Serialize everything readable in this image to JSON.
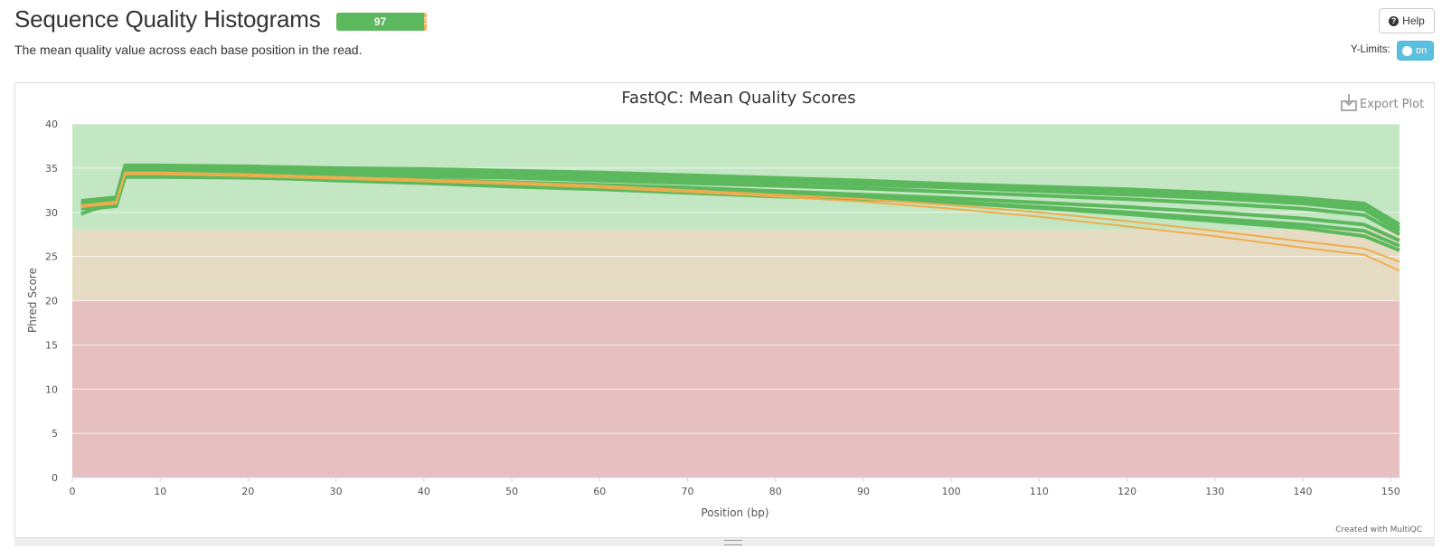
{
  "header": {
    "title": "Sequence Quality Histograms",
    "status_pass": "97",
    "status_warn": "3",
    "description": "The mean quality value across each base position in the read.",
    "help_label": "Help",
    "help_icon": "question-circle-icon",
    "ylimits_label": "Y-Limits:",
    "ylimits_toggle": "on"
  },
  "plot": {
    "export_label": "Export Plot",
    "export_icon": "download-icon",
    "credit": "Created with MultiQC"
  },
  "colors": {
    "pass_line": "#5cb85c",
    "warn_line": "#f0ad4e",
    "band_good": "#c3e6c3",
    "band_warn": "#e6dcc3",
    "band_fail": "#e6c0c0",
    "toggle": "#5bc0de"
  },
  "chart_data": {
    "type": "line",
    "title": "FastQC: Mean Quality Scores",
    "xlabel": "Position (bp)",
    "ylabel": "Phred Score",
    "xlim": [
      0,
      151
    ],
    "ylim": [
      0,
      40
    ],
    "xticks": [
      0,
      10,
      20,
      30,
      40,
      50,
      60,
      70,
      80,
      90,
      100,
      110,
      120,
      130,
      140,
      150
    ],
    "yticks": [
      0,
      5,
      10,
      15,
      20,
      25,
      30,
      35,
      40
    ],
    "bands": [
      {
        "from": 0,
        "to": 20,
        "color": "#e6c0c0"
      },
      {
        "from": 20,
        "to": 28,
        "color": "#e6dcc3"
      },
      {
        "from": 28,
        "to": 40,
        "color": "#c3e6c3"
      }
    ],
    "x": [
      1,
      2,
      3,
      4,
      5,
      6,
      7,
      8,
      9,
      10,
      20,
      30,
      40,
      50,
      60,
      70,
      80,
      90,
      100,
      110,
      120,
      130,
      140,
      147,
      151
    ],
    "series": [
      {
        "status": "pass",
        "values": [
          31.3,
          31.4,
          31.5,
          31.6,
          31.7,
          35.3,
          35.3,
          35.3,
          35.3,
          35.3,
          35.2,
          35.0,
          34.9,
          34.7,
          34.5,
          34.2,
          33.9,
          33.6,
          33.2,
          32.9,
          32.6,
          32.2,
          31.6,
          31.0,
          28.6
        ]
      },
      {
        "status": "pass",
        "values": [
          31.0,
          31.1,
          31.2,
          31.3,
          31.4,
          35.0,
          35.0,
          35.0,
          35.0,
          35.0,
          34.9,
          34.8,
          34.6,
          34.4,
          34.2,
          33.9,
          33.6,
          33.3,
          33.0,
          32.7,
          32.3,
          31.9,
          31.3,
          30.6,
          28.2
        ]
      },
      {
        "status": "pass",
        "values": [
          30.8,
          30.9,
          31.0,
          31.1,
          31.2,
          34.8,
          34.8,
          34.8,
          34.8,
          34.8,
          34.7,
          34.6,
          34.4,
          34.2,
          34.0,
          33.7,
          33.4,
          33.1,
          32.8,
          32.4,
          32.0,
          31.6,
          31.0,
          30.3,
          27.9
        ]
      },
      {
        "status": "pass",
        "values": [
          30.6,
          30.7,
          30.8,
          30.9,
          31.0,
          34.5,
          34.5,
          34.5,
          34.5,
          34.5,
          34.4,
          34.3,
          34.1,
          33.9,
          33.6,
          33.3,
          33.0,
          32.7,
          32.3,
          31.9,
          31.5,
          31.0,
          30.4,
          29.7,
          27.5
        ]
      },
      {
        "status": "pass",
        "values": [
          30.5,
          30.6,
          30.7,
          30.8,
          30.9,
          34.2,
          34.2,
          34.2,
          34.2,
          34.2,
          34.1,
          33.9,
          33.7,
          33.4,
          33.1,
          32.8,
          32.4,
          32.0,
          31.6,
          31.1,
          30.6,
          30.0,
          29.3,
          28.6,
          26.8
        ]
      },
      {
        "status": "pass",
        "values": [
          30.4,
          30.5,
          30.6,
          30.7,
          30.8,
          34.0,
          34.0,
          34.0,
          34.0,
          34.0,
          33.9,
          33.7,
          33.5,
          33.2,
          32.9,
          32.5,
          32.1,
          31.7,
          31.2,
          30.6,
          30.0,
          29.3,
          28.6,
          27.9,
          26.2
        ]
      },
      {
        "status": "pass",
        "values": [
          29.8,
          30.2,
          30.5,
          30.6,
          30.7,
          34.1,
          34.1,
          34.1,
          34.1,
          34.1,
          34.0,
          33.6,
          33.3,
          32.9,
          32.6,
          32.2,
          31.8,
          31.5,
          31.1,
          30.5,
          29.8,
          29.0,
          28.2,
          27.3,
          25.7
        ]
      },
      {
        "status": "warn",
        "values": [
          30.6,
          30.7,
          30.8,
          30.9,
          31.0,
          34.3,
          34.3,
          34.3,
          34.3,
          34.3,
          34.1,
          33.8,
          33.5,
          33.2,
          32.8,
          32.3,
          31.8,
          31.2,
          30.4,
          29.5,
          28.4,
          27.3,
          26.0,
          25.2,
          23.4
        ]
      },
      {
        "status": "warn",
        "values": [
          30.8,
          30.9,
          31.0,
          31.1,
          31.2,
          34.5,
          34.5,
          34.5,
          34.5,
          34.5,
          34.3,
          34.0,
          33.7,
          33.4,
          33.0,
          32.5,
          32.0,
          31.5,
          30.8,
          30.0,
          29.0,
          27.9,
          26.7,
          25.9,
          24.4
        ]
      }
    ]
  }
}
